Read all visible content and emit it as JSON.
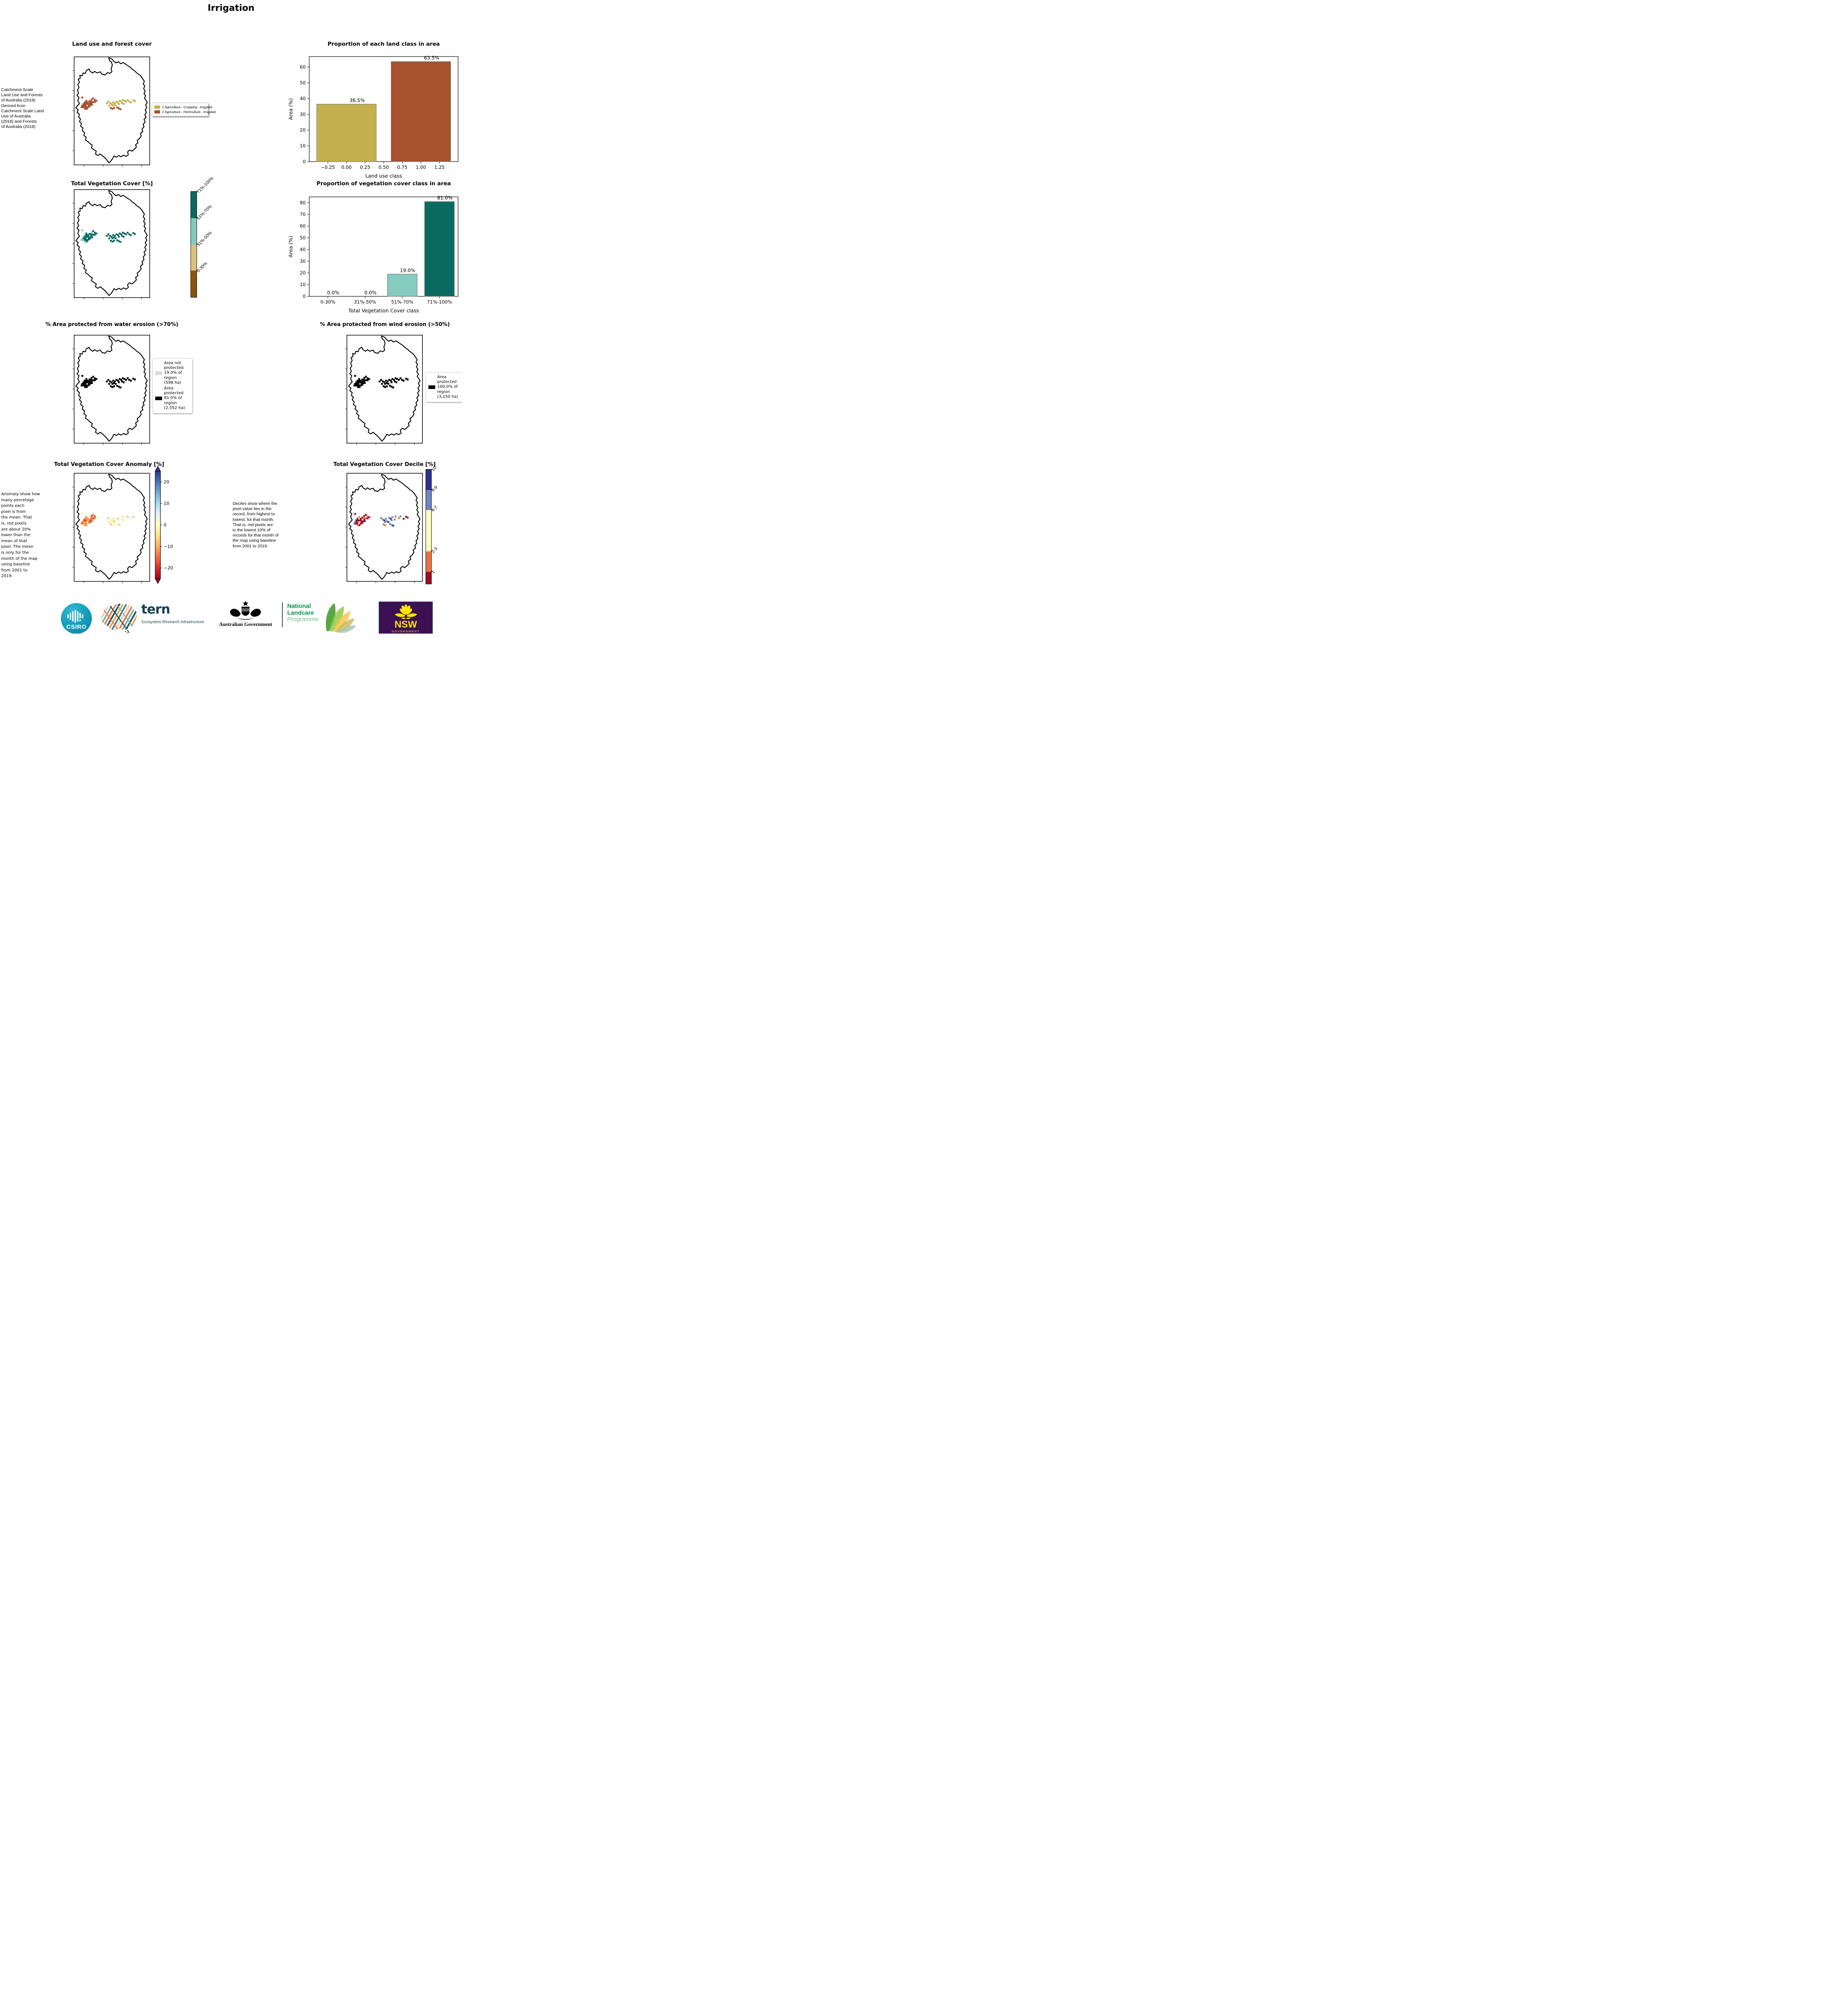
{
  "page": {
    "title": "Irrigation"
  },
  "panels": {
    "landuse": {
      "title": "Land use and forest cover",
      "note": " Catchment Scale\nLand Use and Forests\nof Australia (2018)\nDerived from\nCatchment Scale Land\nUse of Australia\n(2018) and Forests\nof Australia (2018)",
      "legend": [
        {
          "label": "1 Agriculture - Cropping - Irrigated",
          "color": "#c4b04d"
        },
        {
          "label": "2 Agriculture - Horticulture - Irrigated",
          "color": "#a5522d"
        }
      ]
    },
    "vegcover": {
      "title": "Total Vegetation Cover [%]",
      "colorbar": [
        {
          "label": "71%-100%",
          "color": "#0b6a60"
        },
        {
          "label": "51%-70%",
          "color": "#7fcbbd"
        },
        {
          "label": "31%-50%",
          "color": "#ddc07e"
        },
        {
          "label": "0-30%",
          "color": "#8a540e"
        }
      ]
    },
    "water": {
      "title": "% Area protected from water erosion (>70%)",
      "legend": [
        {
          "label": "Area not\nprotected\n19.0% of\nregion\n(598 ha)",
          "color": "#d9d9d9"
        },
        {
          "label": "Area\nprotected\n81.0% of\nregion\n(2,552 ha)",
          "color": "#000000"
        }
      ]
    },
    "wind": {
      "title": "% Area protected from wind erosion (>50%)",
      "legend": [
        {
          "label": "Area\nprotected\n100.0% of\nregion\n(3,150 ha)",
          "color": "#000000"
        }
      ]
    },
    "anomaly": {
      "title": "Total Vegetation Cover Anomaly [%]",
      "note": "Anomaly show how\nmany percetage\npoints each\npixel is from\nthe mean. That\nis, red pixels\nare about 20%\nlower than the\nmean of that\npixel. The mean\nis only for the\nmonth of the map\nusing baseline\nfrom 2001 to\n2019.",
      "colorbar_ticks": [
        "20",
        "10",
        "0",
        "−10",
        "−20"
      ],
      "gradient": [
        "#313695",
        "#4575b4",
        "#74add1",
        "#abd9e9",
        "#e0f3f8",
        "#ffffbf",
        "#fee090",
        "#fdae61",
        "#f46d43",
        "#d73027",
        "#a50026"
      ]
    },
    "decile": {
      "title": "Total Vegetation Cover Decile [%]",
      "note": "Deciles show where the\npixel value lies in the\nrecord, from highest to\nlowest, for that month.\nThat is, red pixels are\nin the lowest 10% of\nrecords for that month of\nthe map using baseline\nfrom 2001 to 2019.",
      "colorbar": [
        {
          "label": "10",
          "color": "#2e3192",
          "frac": 0.18
        },
        {
          "label": "8-9",
          "color": "#6f86c3",
          "frac": 0.175
        },
        {
          "label": "4-7",
          "color": "#fdfdc1",
          "frac": 0.36
        },
        {
          "label": "2-3",
          "color": "#e97342",
          "frac": 0.18
        },
        {
          "label": "1",
          "color": "#a00d26",
          "frac": 0.105
        }
      ]
    }
  },
  "chart_data": [
    {
      "type": "bar",
      "title": "Proportion of each land class in area",
      "xlabel": "Land use class",
      "ylabel": "Area (%)",
      "x": [
        0,
        1
      ],
      "values": [
        36.5,
        63.5
      ],
      "bar_labels": [
        "36.5%",
        "63.5%"
      ],
      "bar_colors": [
        "#c4b04d",
        "#a5522d"
      ],
      "bar_width": 0.8,
      "xlim": [
        -0.5,
        1.5
      ],
      "ylim": [
        0,
        66.7
      ],
      "xtick_values": [
        -0.25,
        0,
        0.25,
        0.5,
        0.75,
        1,
        1.25
      ],
      "xtick_labels": [
        "−0.25",
        "0.00",
        "0.25",
        "0.50",
        "0.75",
        "1.00",
        "1.25"
      ],
      "yticks": [
        0,
        10,
        20,
        30,
        40,
        50,
        60
      ],
      "grid": false,
      "legend_position": "none"
    },
    {
      "type": "bar",
      "title": "Proportion of vegetation cover class in area",
      "xlabel": "Total Vegetation Cover class",
      "ylabel": "Area (%)",
      "categories": [
        "0-30%",
        "31%-50%",
        "51%-70%",
        "71%-100%"
      ],
      "values": [
        0.0,
        0.0,
        19.0,
        81.0
      ],
      "bar_labels": [
        "0.0%",
        "0.0%",
        "19.0%",
        "81.0%"
      ],
      "bar_colors": [
        "#8a540e",
        "#ddc07e",
        "#85ccbf",
        "#0b6a60"
      ],
      "bar_width": 0.8,
      "ylim": [
        0,
        85
      ],
      "yticks": [
        0,
        10,
        20,
        30,
        40,
        50,
        60,
        70,
        80
      ],
      "grid": false,
      "legend_position": "none"
    }
  ],
  "map_pixels": {
    "left_count": 33,
    "base": [
      [
        19,
        100
      ],
      [
        29,
        108
      ],
      [
        42,
        105
      ],
      [
        46,
        102
      ],
      [
        50,
        106
      ],
      [
        25,
        112
      ],
      [
        29,
        112
      ],
      [
        33,
        112
      ],
      [
        37,
        109
      ],
      [
        41,
        110
      ],
      [
        22,
        116
      ],
      [
        26,
        116
      ],
      [
        30,
        116
      ],
      [
        34,
        116
      ],
      [
        38,
        114
      ],
      [
        42,
        114
      ],
      [
        46,
        111
      ],
      [
        50,
        111
      ],
      [
        54,
        108
      ],
      [
        19,
        120
      ],
      [
        23,
        120
      ],
      [
        27,
        120
      ],
      [
        35,
        120
      ],
      [
        39,
        118
      ],
      [
        43,
        118
      ],
      [
        21,
        124
      ],
      [
        25,
        124
      ],
      [
        29,
        124
      ],
      [
        33,
        124
      ],
      [
        37,
        122
      ],
      [
        26,
        128
      ],
      [
        30,
        128
      ],
      [
        17,
        124
      ],
      [
        80,
        114
      ],
      [
        84,
        110
      ],
      [
        88,
        114
      ],
      [
        92,
        116
      ],
      [
        96,
        112
      ],
      [
        100,
        114
      ],
      [
        104,
        110
      ],
      [
        108,
        112
      ],
      [
        112,
        108
      ],
      [
        116,
        110
      ],
      [
        120,
        106
      ],
      [
        124,
        108
      ],
      [
        128,
        110
      ],
      [
        132,
        106
      ],
      [
        136,
        110
      ],
      [
        140,
        112
      ],
      [
        98,
        118
      ],
      [
        102,
        120
      ],
      [
        94,
        120
      ],
      [
        118,
        114
      ],
      [
        122,
        116
      ],
      [
        110,
        116
      ],
      [
        146,
        107
      ],
      [
        150,
        109
      ],
      [
        90,
        126
      ],
      [
        94,
        128
      ],
      [
        98,
        126
      ],
      [
        110,
        127
      ],
      [
        114,
        129
      ],
      [
        106,
        125
      ],
      [
        86,
        120
      ]
    ],
    "maps": {
      "landuse": {
        "left": "#a5522d",
        "center": "#c4b04d",
        "overrides": {
          "57": "#a5522d",
          "58": "#a5522d",
          "59": "#a5522d",
          "60": "#a5522d",
          "61": "#a5522d",
          "62": "#a5522d"
        }
      },
      "vegcover": {
        "left": "#0b6a60",
        "center": "#0b6a60",
        "overrides": {
          "0": "#7fcbbd",
          "2": "#7fcbbd",
          "5": "#7fcbbd",
          "10": "#7fcbbd",
          "19": "#7fcbbd",
          "25": "#7fcbbd",
          "30": "#7fcbbd",
          "32": "#7fcbbd",
          "14": "#7fcbbd"
        }
      },
      "water": {
        "left": "#000000",
        "center": "#000000",
        "overrides": {}
      },
      "wind": {
        "left": "#000000",
        "center": "#000000",
        "overrides": {}
      },
      "anomaly": {
        "left": "#ee7a43",
        "center": "#fdf6b5",
        "overrides": {
          "0": "#fdf0a8",
          "2": "#cf3727",
          "4": "#cf3727",
          "6": "#f9b267",
          "8": "#fdf0a8",
          "11": "#cf3727",
          "13": "#f9b267",
          "16": "#cf3727",
          "18": "#fdf0a8",
          "20": "#f9b267",
          "23": "#cf3727",
          "26": "#f9b267",
          "28": "#fdf0a8",
          "31": "#f9b267",
          "34": "#aed1e6",
          "37": "#d6e9f2",
          "40": "#aed1e6",
          "43": "#fde28a",
          "46": "#aed1e6",
          "49": "#f9b267",
          "52": "#d6e9f2",
          "55": "#aed1e6",
          "57": "#f9b267",
          "60": "#aed1e6",
          "63": "#fde28a"
        }
      },
      "decile": {
        "left": "#a00d26",
        "center": "#6f86c3",
        "overrides": {
          "1": "#e97342",
          "4": "#e97342",
          "6": "#fdfdc1",
          "9": "#e97342",
          "11": "#2e3192",
          "14": "#fdfdc1",
          "16": "#e97342",
          "19": "#6f86c3",
          "21": "#e97342",
          "24": "#2e3192",
          "27": "#fdfdc1",
          "30": "#e97342",
          "32": "#6f86c3",
          "33": "#fdfdc1",
          "36": "#2e3192",
          "38": "#fdfdc1",
          "40": "#2e3192",
          "42": "#fdfdc1",
          "44": "#fdfdc1",
          "45": "#e97342",
          "47": "#fdfdc1",
          "48": "#a00d26",
          "50": "#2e3192",
          "53": "#fdfdc1",
          "55": "#2e3192",
          "56": "#a00d26",
          "58": "#e97342",
          "59": "#fdfdc1",
          "61": "#2e3192",
          "63": "#fdfdc1"
        }
      }
    }
  },
  "footer": {
    "csiro_label": "CSIRO",
    "tern_label": "tern",
    "tern_sub": "Ecosystem Research Infrastructure",
    "ausgov_label": "Australian Government",
    "landcare_line1": "National",
    "landcare_line2": "Landcare",
    "landcare_line3": "Programme",
    "nsw_label": "NSW",
    "nsw_sub": "GOVERNMENT"
  }
}
